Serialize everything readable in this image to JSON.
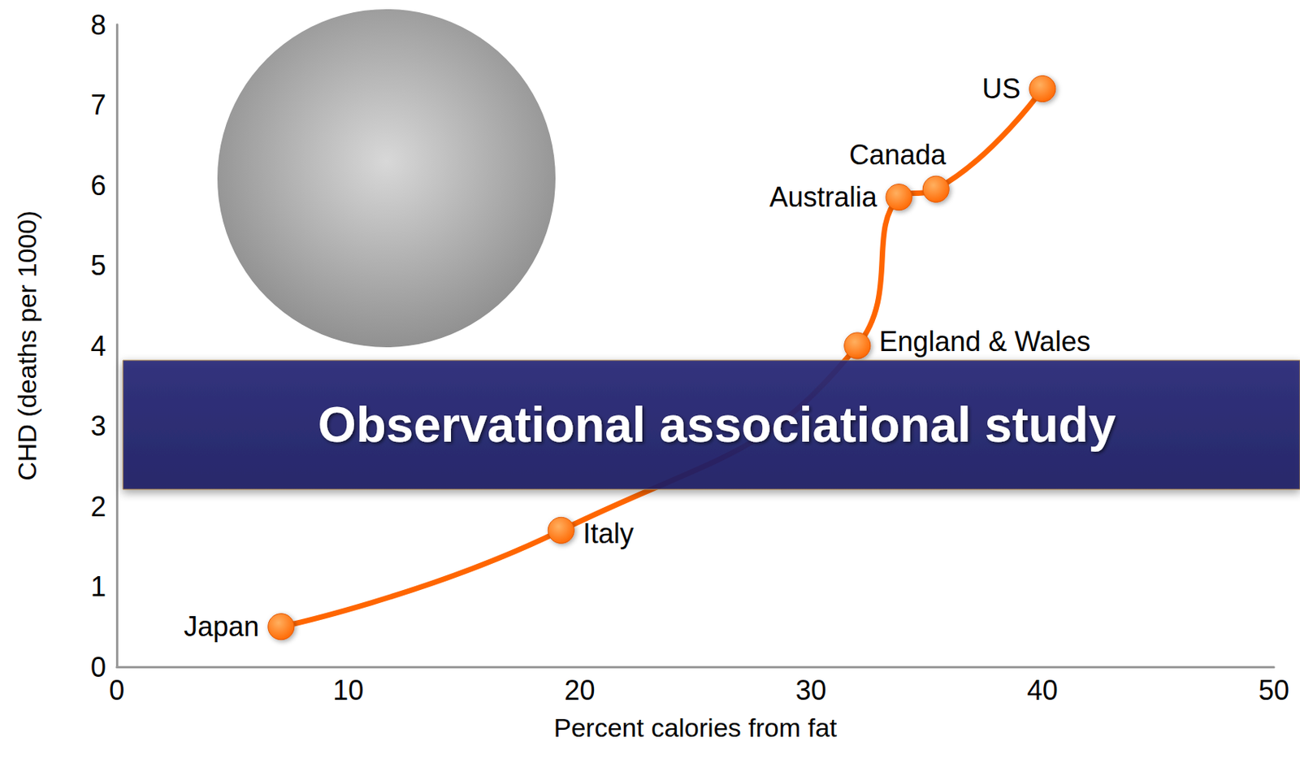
{
  "chart_data": {
    "type": "line",
    "x": [
      7.1,
      19.2,
      32.0,
      33.8,
      35.4,
      40.0
    ],
    "values": [
      0.5,
      1.7,
      4.0,
      5.85,
      5.95,
      7.2
    ],
    "point_labels": [
      "Japan",
      "Italy",
      "England & Wales",
      "Australia",
      "Canada",
      "US"
    ],
    "xlabel": "Percent calories from fat",
    "ylabel": "CHD (deaths per 1000)",
    "annotation": "Observational associational study",
    "xlim": [
      0,
      50
    ],
    "xticks": [
      0,
      10,
      20,
      30,
      40,
      50
    ],
    "ylim": [
      0,
      8
    ],
    "yticks": [
      0,
      1,
      2,
      3,
      4,
      5,
      6,
      7,
      8
    ],
    "color": "#ff6600",
    "marker": "circle",
    "line_style": "smooth",
    "grid": false
  }
}
